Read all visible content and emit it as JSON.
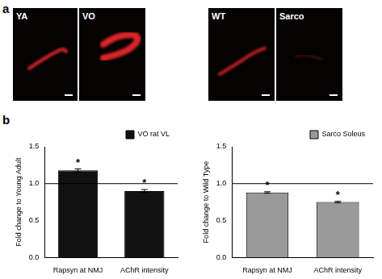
{
  "figure": {
    "panel_labels": [
      "a",
      "b"
    ],
    "images": [
      {
        "label": "YA"
      },
      {
        "label": "VO"
      },
      {
        "label": "WT"
      },
      {
        "label": "Sarco"
      }
    ]
  },
  "chart_data": [
    {
      "type": "bar",
      "categories": [
        "Rapsyn at NMJ",
        "AChR intensity"
      ],
      "series": [
        {
          "name": "VO rat VL",
          "color": "#111111",
          "values": [
            1.18,
            0.9
          ],
          "errors": [
            0.02,
            0.02
          ]
        }
      ],
      "y_label": "Fold change to Young Adult",
      "ylim": [
        0,
        1.5
      ],
      "yticks": [
        {
          "value": 0,
          "label": "0.0"
        },
        0.5,
        {
          "value": 1,
          "label": "1.0"
        },
        1.5
      ],
      "grid": false,
      "legend": "top-right",
      "hline": 1,
      "annotations": [
        {
          "category": "Rapsyn at NMJ",
          "text": "*"
        },
        {
          "category": "AChR intensity",
          "text": "*"
        }
      ]
    },
    {
      "type": "bar",
      "categories": [
        "Rapsyn at NMJ",
        "AChR intensity"
      ],
      "series": [
        {
          "name": "Sarco Soleus",
          "color": "#9a9a9a",
          "values": [
            0.88,
            0.75
          ],
          "errors": [
            0.01,
            0.01
          ]
        }
      ],
      "y_label": "Fold change to Wild Type",
      "ylim": [
        0,
        1.5
      ],
      "yticks": [
        {
          "value": 0,
          "label": "0.0"
        },
        0.5,
        {
          "value": 1,
          "label": "1.0"
        },
        1.5
      ],
      "grid": false,
      "legend": "top-right",
      "hline": 1,
      "annotations": [
        {
          "category": "Rapsyn at NMJ",
          "text": "*"
        },
        {
          "category": "AChR intensity",
          "text": "*"
        }
      ]
    }
  ]
}
